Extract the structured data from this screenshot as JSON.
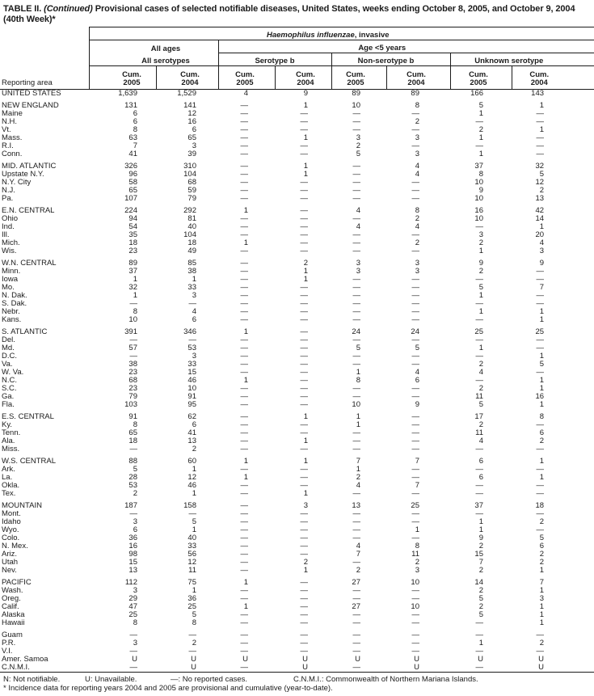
{
  "title": {
    "label": "TABLE II.",
    "continued": "(Continued)",
    "rest": "Provisional cases of selected notifiable diseases, United States, weeks ending October 8, 2005, and October 9, 2004",
    "line2": "(40th Week)*"
  },
  "header": {
    "reporting_area_label": "Reporting area",
    "disease_italic": "Haemophilus influenzae",
    "disease_suffix": ", invasive",
    "group_all_ages": "All ages",
    "group_age_under5": "Age <5 years",
    "sub_all_serotypes": "All serotypes",
    "sub_serotype_b": "Serotype b",
    "sub_non_serotype_b": "Non-serotype b",
    "sub_unknown_serotype": "Unknown serotype",
    "cum_label": "Cum.",
    "years": [
      "2005",
      "2004",
      "2005",
      "2004",
      "2005",
      "2004",
      "2005",
      "2004"
    ]
  },
  "sections": [
    {
      "rows": [
        {
          "area": "UNITED STATES",
          "values": [
            "1,639",
            "1,529",
            "4",
            "9",
            "89",
            "89",
            "166",
            "143"
          ]
        }
      ]
    },
    {
      "rows": [
        {
          "area": "NEW ENGLAND",
          "values": [
            "131",
            "141",
            "—",
            "1",
            "10",
            "8",
            "5",
            "1"
          ]
        },
        {
          "area": "Maine",
          "values": [
            "6",
            "12",
            "—",
            "—",
            "—",
            "—",
            "1",
            "—"
          ]
        },
        {
          "area": "N.H.",
          "values": [
            "6",
            "16",
            "—",
            "—",
            "—",
            "2",
            "—",
            "—"
          ]
        },
        {
          "area": "Vt.",
          "values": [
            "8",
            "6",
            "—",
            "—",
            "—",
            "—",
            "2",
            "1"
          ]
        },
        {
          "area": "Mass.",
          "values": [
            "63",
            "65",
            "—",
            "1",
            "3",
            "3",
            "1",
            "—"
          ]
        },
        {
          "area": "R.I.",
          "values": [
            "7",
            "3",
            "—",
            "—",
            "2",
            "—",
            "—",
            "—"
          ]
        },
        {
          "area": "Conn.",
          "values": [
            "41",
            "39",
            "—",
            "—",
            "5",
            "3",
            "1",
            "—"
          ]
        }
      ]
    },
    {
      "rows": [
        {
          "area": "MID. ATLANTIC",
          "values": [
            "326",
            "310",
            "—",
            "1",
            "—",
            "4",
            "37",
            "32"
          ]
        },
        {
          "area": "Upstate N.Y.",
          "values": [
            "96",
            "104",
            "—",
            "1",
            "—",
            "4",
            "8",
            "5"
          ]
        },
        {
          "area": "N.Y. City",
          "values": [
            "58",
            "68",
            "—",
            "—",
            "—",
            "—",
            "10",
            "12"
          ]
        },
        {
          "area": "N.J.",
          "values": [
            "65",
            "59",
            "—",
            "—",
            "—",
            "—",
            "9",
            "2"
          ]
        },
        {
          "area": "Pa.",
          "values": [
            "107",
            "79",
            "—",
            "—",
            "—",
            "—",
            "10",
            "13"
          ]
        }
      ]
    },
    {
      "rows": [
        {
          "area": "E.N. CENTRAL",
          "values": [
            "224",
            "292",
            "1",
            "—",
            "4",
            "8",
            "16",
            "42"
          ]
        },
        {
          "area": "Ohio",
          "values": [
            "94",
            "81",
            "—",
            "—",
            "—",
            "2",
            "10",
            "14"
          ]
        },
        {
          "area": "Ind.",
          "values": [
            "54",
            "40",
            "—",
            "—",
            "4",
            "4",
            "—",
            "1"
          ]
        },
        {
          "area": "Ill.",
          "values": [
            "35",
            "104",
            "—",
            "—",
            "—",
            "—",
            "3",
            "20"
          ]
        },
        {
          "area": "Mich.",
          "values": [
            "18",
            "18",
            "1",
            "—",
            "—",
            "2",
            "2",
            "4"
          ]
        },
        {
          "area": "Wis.",
          "values": [
            "23",
            "49",
            "—",
            "—",
            "—",
            "—",
            "1",
            "3"
          ]
        }
      ]
    },
    {
      "rows": [
        {
          "area": "W.N. CENTRAL",
          "values": [
            "89",
            "85",
            "—",
            "2",
            "3",
            "3",
            "9",
            "9"
          ]
        },
        {
          "area": "Minn.",
          "values": [
            "37",
            "38",
            "—",
            "1",
            "3",
            "3",
            "2",
            "—"
          ]
        },
        {
          "area": "Iowa",
          "values": [
            "1",
            "1",
            "—",
            "1",
            "—",
            "—",
            "—",
            "—"
          ]
        },
        {
          "area": "Mo.",
          "values": [
            "32",
            "33",
            "—",
            "—",
            "—",
            "—",
            "5",
            "7"
          ]
        },
        {
          "area": "N. Dak.",
          "values": [
            "1",
            "3",
            "—",
            "—",
            "—",
            "—",
            "1",
            "—"
          ]
        },
        {
          "area": "S. Dak.",
          "values": [
            "—",
            "—",
            "—",
            "—",
            "—",
            "—",
            "—",
            "—"
          ]
        },
        {
          "area": "Nebr.",
          "values": [
            "8",
            "4",
            "—",
            "—",
            "—",
            "—",
            "1",
            "1"
          ]
        },
        {
          "area": "Kans.",
          "values": [
            "10",
            "6",
            "—",
            "—",
            "—",
            "—",
            "—",
            "1"
          ]
        }
      ]
    },
    {
      "rows": [
        {
          "area": "S. ATLANTIC",
          "values": [
            "391",
            "346",
            "1",
            "—",
            "24",
            "24",
            "25",
            "25"
          ]
        },
        {
          "area": "Del.",
          "values": [
            "—",
            "—",
            "—",
            "—",
            "—",
            "—",
            "—",
            "—"
          ]
        },
        {
          "area": "Md.",
          "values": [
            "57",
            "53",
            "—",
            "—",
            "5",
            "5",
            "1",
            "—"
          ]
        },
        {
          "area": "D.C.",
          "values": [
            "—",
            "3",
            "—",
            "—",
            "—",
            "—",
            "—",
            "1"
          ]
        },
        {
          "area": "Va.",
          "values": [
            "38",
            "33",
            "—",
            "—",
            "—",
            "—",
            "2",
            "5"
          ]
        },
        {
          "area": "W. Va.",
          "values": [
            "23",
            "15",
            "—",
            "—",
            "1",
            "4",
            "4",
            "—"
          ]
        },
        {
          "area": "N.C.",
          "values": [
            "68",
            "46",
            "1",
            "—",
            "8",
            "6",
            "—",
            "1"
          ]
        },
        {
          "area": "S.C.",
          "values": [
            "23",
            "10",
            "—",
            "—",
            "—",
            "—",
            "2",
            "1"
          ]
        },
        {
          "area": "Ga.",
          "values": [
            "79",
            "91",
            "—",
            "—",
            "—",
            "—",
            "11",
            "16"
          ]
        },
        {
          "area": "Fla.",
          "values": [
            "103",
            "95",
            "—",
            "—",
            "10",
            "9",
            "5",
            "1"
          ]
        }
      ]
    },
    {
      "rows": [
        {
          "area": "E.S. CENTRAL",
          "values": [
            "91",
            "62",
            "—",
            "1",
            "1",
            "—",
            "17",
            "8"
          ]
        },
        {
          "area": "Ky.",
          "values": [
            "8",
            "6",
            "—",
            "—",
            "1",
            "—",
            "2",
            "—"
          ]
        },
        {
          "area": "Tenn.",
          "values": [
            "65",
            "41",
            "—",
            "—",
            "—",
            "—",
            "11",
            "6"
          ]
        },
        {
          "area": "Ala.",
          "values": [
            "18",
            "13",
            "—",
            "1",
            "—",
            "—",
            "4",
            "2"
          ]
        },
        {
          "area": "Miss.",
          "values": [
            "—",
            "2",
            "—",
            "—",
            "—",
            "—",
            "—",
            "—"
          ]
        }
      ]
    },
    {
      "rows": [
        {
          "area": "W.S. CENTRAL",
          "values": [
            "88",
            "60",
            "1",
            "1",
            "7",
            "7",
            "6",
            "1"
          ]
        },
        {
          "area": "Ark.",
          "values": [
            "5",
            "1",
            "—",
            "—",
            "1",
            "—",
            "—",
            "—"
          ]
        },
        {
          "area": "La.",
          "values": [
            "28",
            "12",
            "1",
            "—",
            "2",
            "—",
            "6",
            "1"
          ]
        },
        {
          "area": "Okla.",
          "values": [
            "53",
            "46",
            "—",
            "—",
            "4",
            "7",
            "—",
            "—"
          ]
        },
        {
          "area": "Tex.",
          "values": [
            "2",
            "1",
            "—",
            "1",
            "—",
            "—",
            "—",
            "—"
          ]
        }
      ]
    },
    {
      "rows": [
        {
          "area": "MOUNTAIN",
          "values": [
            "187",
            "158",
            "—",
            "3",
            "13",
            "25",
            "37",
            "18"
          ]
        },
        {
          "area": "Mont.",
          "values": [
            "—",
            "—",
            "—",
            "—",
            "—",
            "—",
            "—",
            "—"
          ]
        },
        {
          "area": "Idaho",
          "values": [
            "3",
            "5",
            "—",
            "—",
            "—",
            "—",
            "1",
            "2"
          ]
        },
        {
          "area": "Wyo.",
          "values": [
            "6",
            "1",
            "—",
            "—",
            "—",
            "1",
            "1",
            "—"
          ]
        },
        {
          "area": "Colo.",
          "values": [
            "36",
            "40",
            "—",
            "—",
            "—",
            "—",
            "9",
            "5"
          ]
        },
        {
          "area": "N. Mex.",
          "values": [
            "16",
            "33",
            "—",
            "—",
            "4",
            "8",
            "2",
            "6"
          ]
        },
        {
          "area": "Ariz.",
          "values": [
            "98",
            "56",
            "—",
            "—",
            "7",
            "11",
            "15",
            "2"
          ]
        },
        {
          "area": "Utah",
          "values": [
            "15",
            "12",
            "—",
            "2",
            "—",
            "2",
            "7",
            "2"
          ]
        },
        {
          "area": "Nev.",
          "values": [
            "13",
            "11",
            "—",
            "1",
            "2",
            "3",
            "2",
            "1"
          ]
        }
      ]
    },
    {
      "rows": [
        {
          "area": "PACIFIC",
          "values": [
            "112",
            "75",
            "1",
            "—",
            "27",
            "10",
            "14",
            "7"
          ]
        },
        {
          "area": "Wash.",
          "values": [
            "3",
            "1",
            "—",
            "—",
            "—",
            "—",
            "2",
            "1"
          ]
        },
        {
          "area": "Oreg.",
          "values": [
            "29",
            "36",
            "—",
            "—",
            "—",
            "—",
            "5",
            "3"
          ]
        },
        {
          "area": "Calif.",
          "values": [
            "47",
            "25",
            "1",
            "—",
            "27",
            "10",
            "2",
            "1"
          ]
        },
        {
          "area": "Alaska",
          "values": [
            "25",
            "5",
            "—",
            "—",
            "—",
            "—",
            "5",
            "1"
          ]
        },
        {
          "area": "Hawaii",
          "values": [
            "8",
            "8",
            "—",
            "—",
            "—",
            "—",
            "—",
            "1"
          ]
        }
      ]
    },
    {
      "rows": [
        {
          "area": "Guam",
          "values": [
            "—",
            "—",
            "—",
            "—",
            "—",
            "—",
            "—",
            "—"
          ]
        },
        {
          "area": "P.R.",
          "values": [
            "3",
            "2",
            "—",
            "—",
            "—",
            "—",
            "1",
            "2"
          ]
        },
        {
          "area": "V.I.",
          "values": [
            "—",
            "—",
            "—",
            "—",
            "—",
            "—",
            "—",
            "—"
          ]
        },
        {
          "area": "Amer. Samoa",
          "values": [
            "U",
            "U",
            "U",
            "U",
            "U",
            "U",
            "U",
            "U"
          ]
        },
        {
          "area": "C.N.M.I.",
          "values": [
            "—",
            "U",
            "—",
            "U",
            "—",
            "U",
            "—",
            "U"
          ]
        }
      ]
    }
  ],
  "footnotes": {
    "n": "N: Not notifiable.",
    "u": "U: Unavailable.",
    "dash": "—: No reported cases.",
    "cnmi": "C.N.M.I.: Commonwealth of Northern Mariana Islands.",
    "star": "* Incidence data for reporting years 2004 and 2005 are provisional and cumulative (year-to-date)."
  }
}
